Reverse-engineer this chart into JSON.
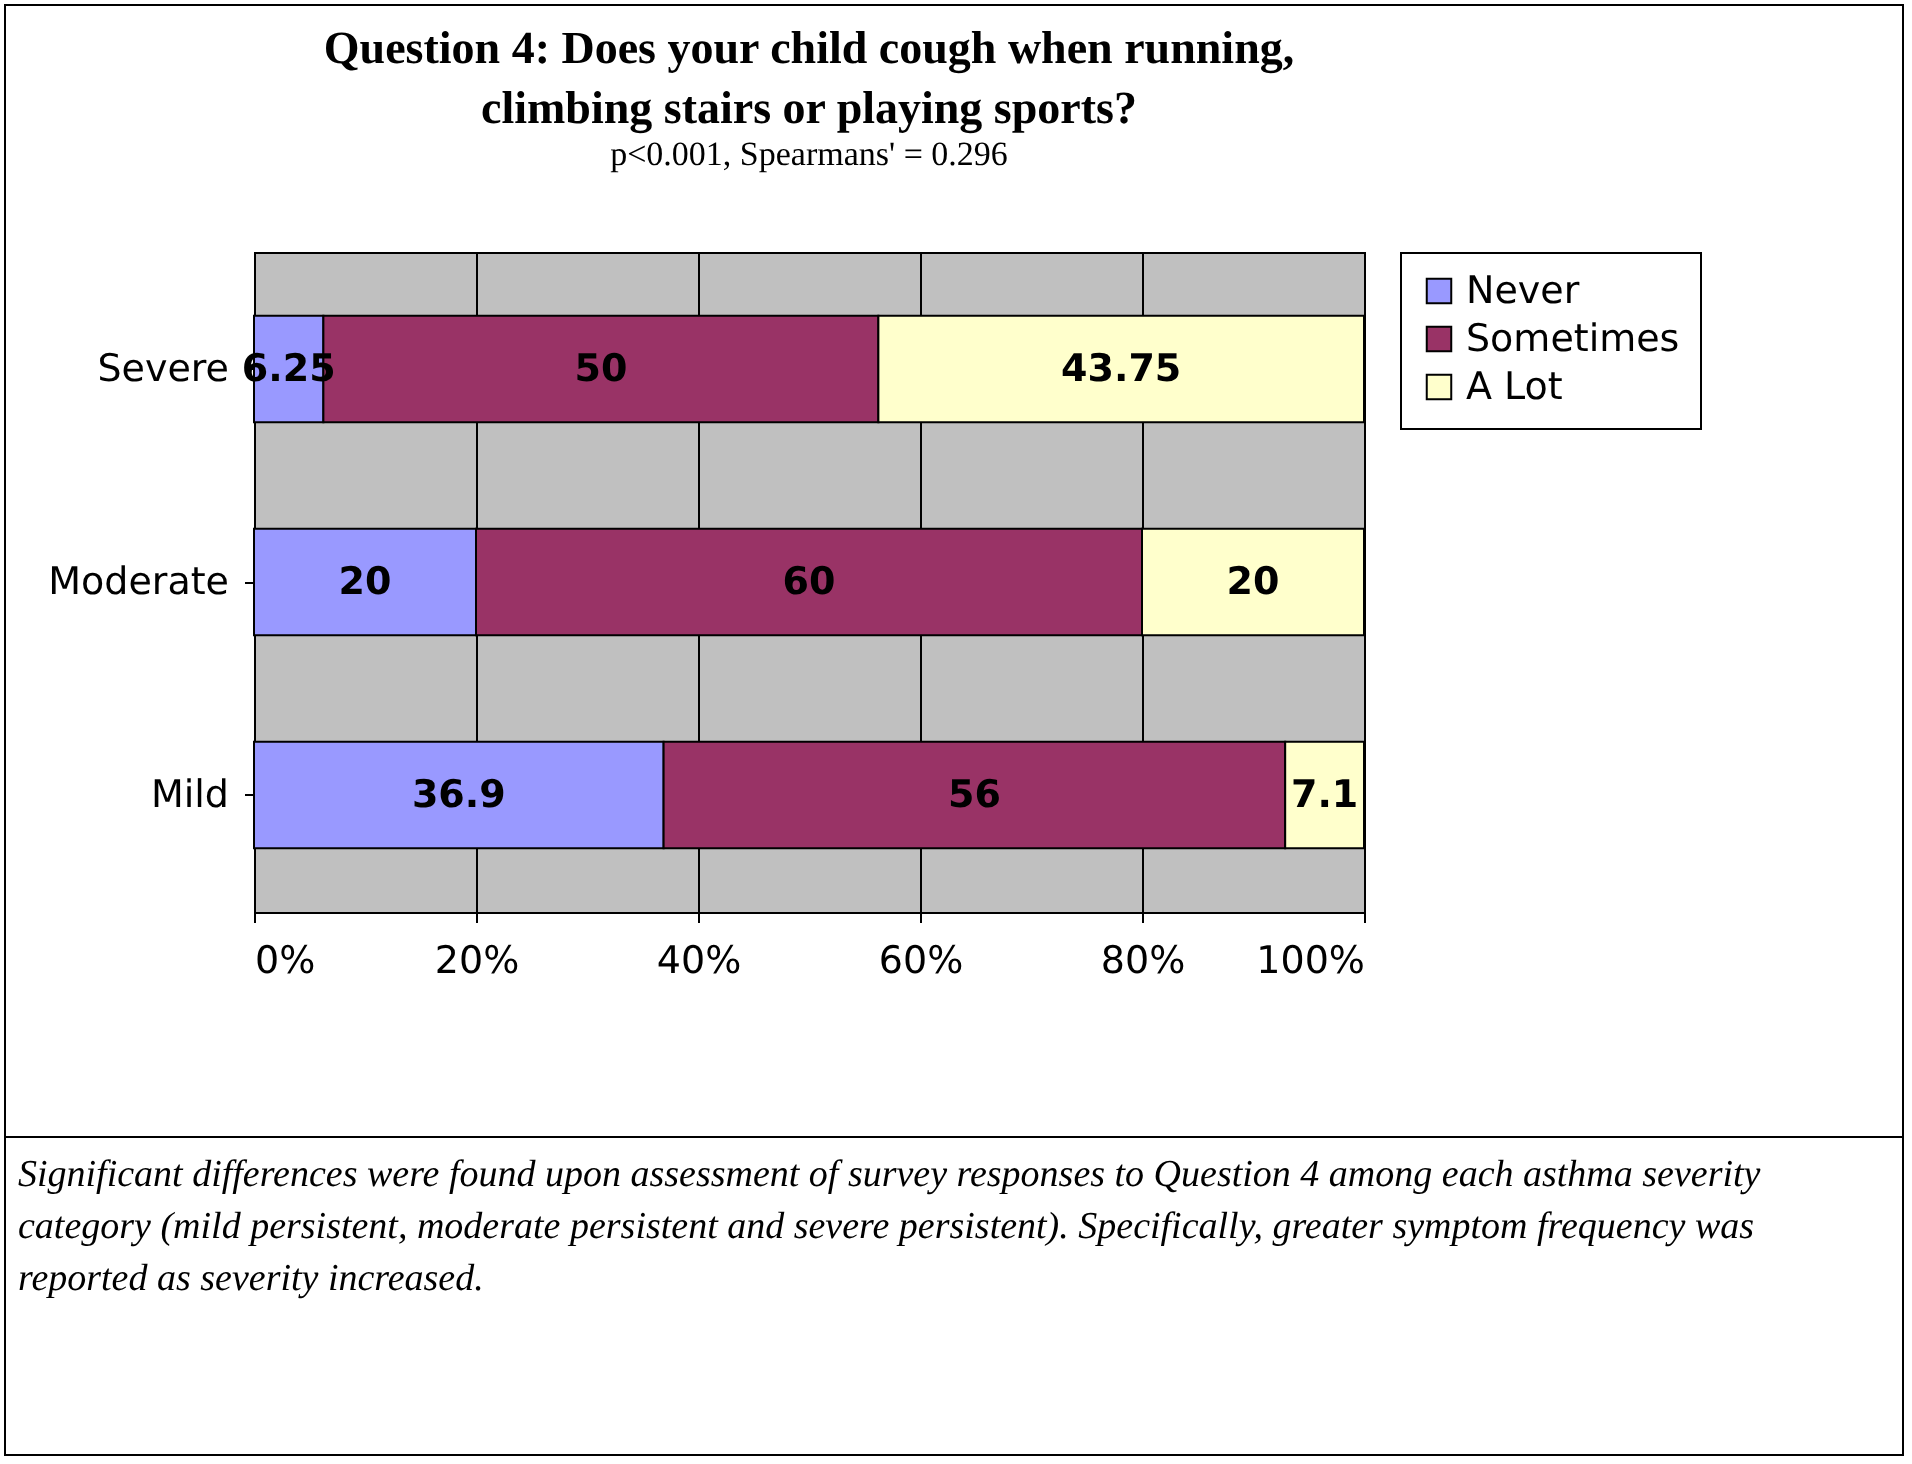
{
  "chart_data": {
    "type": "bar",
    "orientation": "horizontal",
    "stacked": true,
    "title": "Question 4: Does your child cough when running, climbing stairs or playing sports?",
    "subtitle": "p<0.001, Spearmans' = 0.296",
    "categories": [
      "Severe",
      "Moderate",
      "Mild"
    ],
    "series": [
      {
        "name": "Never",
        "color": "#9999ff",
        "values": [
          6.25,
          20,
          36.9
        ]
      },
      {
        "name": "Sometimes",
        "color": "#993366",
        "values": [
          50,
          60,
          56
        ]
      },
      {
        "name": "A Lot",
        "color": "#ffffcc",
        "values": [
          43.75,
          20,
          7.1
        ]
      }
    ],
    "xlim": [
      0,
      100
    ],
    "xticks": [
      {
        "value": 0,
        "label": "0%"
      },
      {
        "value": 20,
        "label": "20%"
      },
      {
        "value": 40,
        "label": "40%"
      },
      {
        "value": 60,
        "label": "60%"
      },
      {
        "value": 80,
        "label": "80%"
      },
      {
        "value": 100,
        "label": "100%"
      }
    ],
    "grid": "x",
    "legend": "right",
    "data_labels": true,
    "annotations": [
      "Significant differences were found upon assessment of survey responses to Question 4 among each asthma severity category (mild persistent, moderate persistent and severe persistent).  Specifically, greater symptom frequency was reported as severity increased."
    ]
  }
}
